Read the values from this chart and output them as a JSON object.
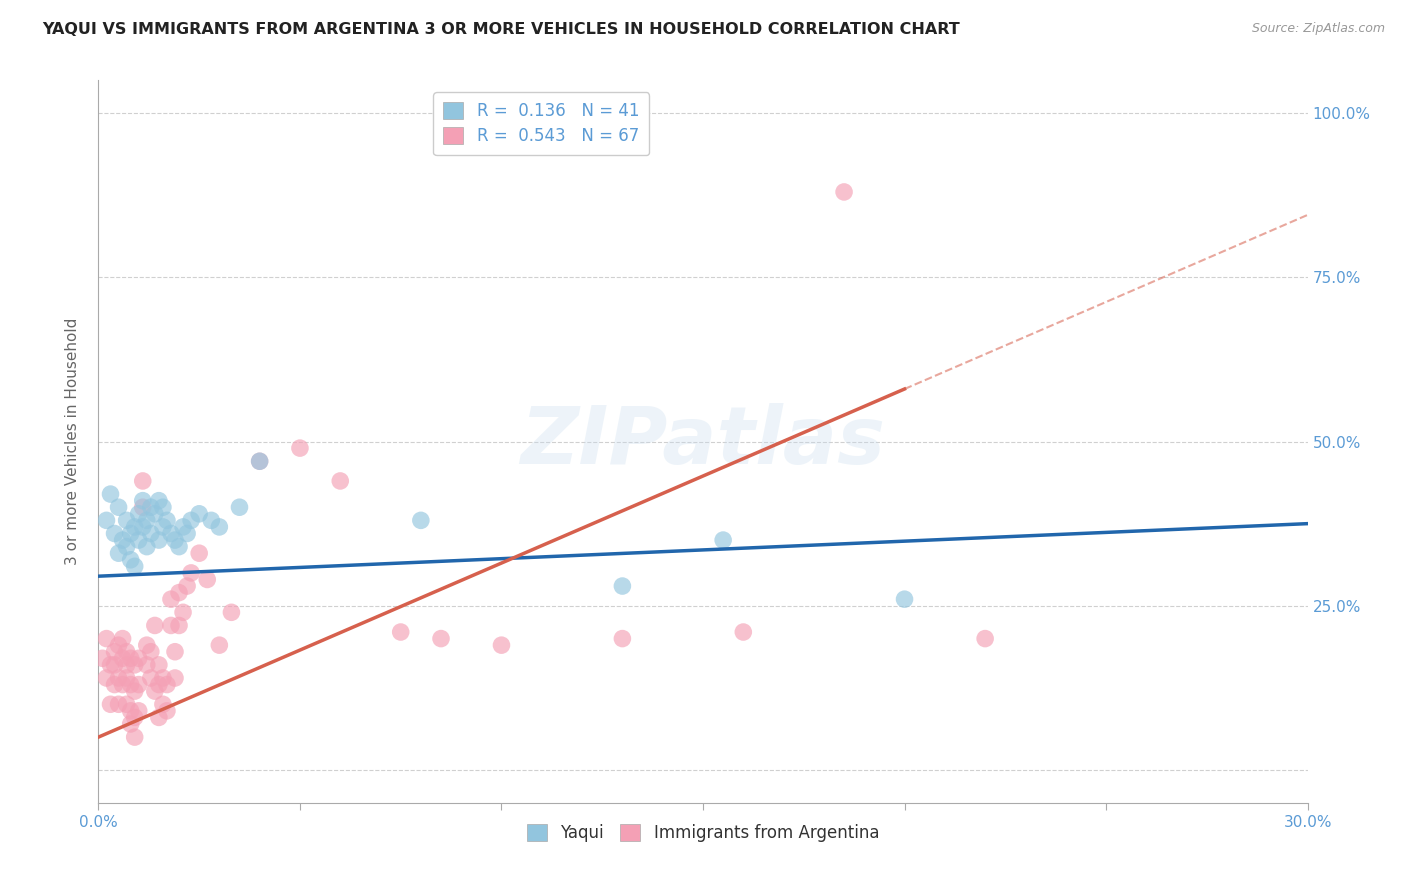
{
  "title": "YAQUI VS IMMIGRANTS FROM ARGENTINA 3 OR MORE VEHICLES IN HOUSEHOLD CORRELATION CHART",
  "source": "Source: ZipAtlas.com",
  "ylabel": "3 or more Vehicles in Household",
  "xlim": [
    0.0,
    0.3
  ],
  "ylim": [
    -0.05,
    1.05
  ],
  "yticks": [
    0.0,
    0.25,
    0.5,
    0.75,
    1.0
  ],
  "xticks": [
    0.0,
    0.05,
    0.1,
    0.15,
    0.2,
    0.25,
    0.3
  ],
  "xtick_labels": [
    "0.0%",
    "",
    "",
    "",
    "",
    "",
    "30.0%"
  ],
  "watermark": "ZIPatlas",
  "yaqui_color": "#92c5de",
  "argentina_color": "#f4a0b5",
  "yaqui_line_color": "#2166ac",
  "argentina_line_color": "#d6604d",
  "background_color": "#ffffff",
  "grid_color": "#d0d0d0",
  "yaqui_scatter": [
    [
      0.002,
      0.38
    ],
    [
      0.003,
      0.42
    ],
    [
      0.004,
      0.36
    ],
    [
      0.005,
      0.4
    ],
    [
      0.005,
      0.33
    ],
    [
      0.006,
      0.35
    ],
    [
      0.007,
      0.38
    ],
    [
      0.007,
      0.34
    ],
    [
      0.008,
      0.36
    ],
    [
      0.008,
      0.32
    ],
    [
      0.009,
      0.37
    ],
    [
      0.009,
      0.31
    ],
    [
      0.01,
      0.39
    ],
    [
      0.01,
      0.35
    ],
    [
      0.011,
      0.41
    ],
    [
      0.011,
      0.37
    ],
    [
      0.012,
      0.38
    ],
    [
      0.012,
      0.34
    ],
    [
      0.013,
      0.4
    ],
    [
      0.013,
      0.36
    ],
    [
      0.014,
      0.39
    ],
    [
      0.015,
      0.41
    ],
    [
      0.015,
      0.35
    ],
    [
      0.016,
      0.4
    ],
    [
      0.016,
      0.37
    ],
    [
      0.017,
      0.38
    ],
    [
      0.018,
      0.36
    ],
    [
      0.019,
      0.35
    ],
    [
      0.02,
      0.34
    ],
    [
      0.021,
      0.37
    ],
    [
      0.022,
      0.36
    ],
    [
      0.023,
      0.38
    ],
    [
      0.025,
      0.39
    ],
    [
      0.028,
      0.38
    ],
    [
      0.03,
      0.37
    ],
    [
      0.035,
      0.4
    ],
    [
      0.04,
      0.47
    ],
    [
      0.08,
      0.38
    ],
    [
      0.13,
      0.28
    ],
    [
      0.155,
      0.35
    ],
    [
      0.2,
      0.26
    ]
  ],
  "argentina_scatter": [
    [
      0.001,
      0.17
    ],
    [
      0.002,
      0.14
    ],
    [
      0.002,
      0.2
    ],
    [
      0.003,
      0.16
    ],
    [
      0.003,
      0.1
    ],
    [
      0.004,
      0.18
    ],
    [
      0.004,
      0.13
    ],
    [
      0.004,
      0.16
    ],
    [
      0.005,
      0.19
    ],
    [
      0.005,
      0.14
    ],
    [
      0.005,
      0.1
    ],
    [
      0.006,
      0.17
    ],
    [
      0.006,
      0.13
    ],
    [
      0.006,
      0.2
    ],
    [
      0.007,
      0.18
    ],
    [
      0.007,
      0.14
    ],
    [
      0.007,
      0.1
    ],
    [
      0.007,
      0.16
    ],
    [
      0.008,
      0.17
    ],
    [
      0.008,
      0.13
    ],
    [
      0.008,
      0.09
    ],
    [
      0.008,
      0.07
    ],
    [
      0.009,
      0.16
    ],
    [
      0.009,
      0.12
    ],
    [
      0.009,
      0.08
    ],
    [
      0.009,
      0.05
    ],
    [
      0.01,
      0.17
    ],
    [
      0.01,
      0.13
    ],
    [
      0.01,
      0.09
    ],
    [
      0.011,
      0.44
    ],
    [
      0.011,
      0.4
    ],
    [
      0.012,
      0.16
    ],
    [
      0.012,
      0.19
    ],
    [
      0.013,
      0.14
    ],
    [
      0.013,
      0.18
    ],
    [
      0.014,
      0.12
    ],
    [
      0.014,
      0.22
    ],
    [
      0.015,
      0.08
    ],
    [
      0.015,
      0.16
    ],
    [
      0.015,
      0.13
    ],
    [
      0.016,
      0.1
    ],
    [
      0.016,
      0.14
    ],
    [
      0.017,
      0.09
    ],
    [
      0.017,
      0.13
    ],
    [
      0.018,
      0.22
    ],
    [
      0.018,
      0.26
    ],
    [
      0.019,
      0.14
    ],
    [
      0.019,
      0.18
    ],
    [
      0.02,
      0.22
    ],
    [
      0.02,
      0.27
    ],
    [
      0.021,
      0.24
    ],
    [
      0.022,
      0.28
    ],
    [
      0.023,
      0.3
    ],
    [
      0.025,
      0.33
    ],
    [
      0.027,
      0.29
    ],
    [
      0.03,
      0.19
    ],
    [
      0.033,
      0.24
    ],
    [
      0.04,
      0.47
    ],
    [
      0.05,
      0.49
    ],
    [
      0.06,
      0.44
    ],
    [
      0.075,
      0.21
    ],
    [
      0.085,
      0.2
    ],
    [
      0.1,
      0.19
    ],
    [
      0.13,
      0.2
    ],
    [
      0.16,
      0.21
    ],
    [
      0.185,
      0.88
    ],
    [
      0.22,
      0.2
    ]
  ],
  "yaqui_line": {
    "x0": 0.0,
    "y0": 0.295,
    "x1": 0.3,
    "y1": 0.375
  },
  "argentina_line_solid": {
    "x0": 0.0,
    "y0": 0.05,
    "x1": 0.2,
    "y1": 0.58
  },
  "argentina_line_dashed": {
    "x0": 0.2,
    "y0": 0.58,
    "x1": 0.3,
    "y1": 0.845
  }
}
